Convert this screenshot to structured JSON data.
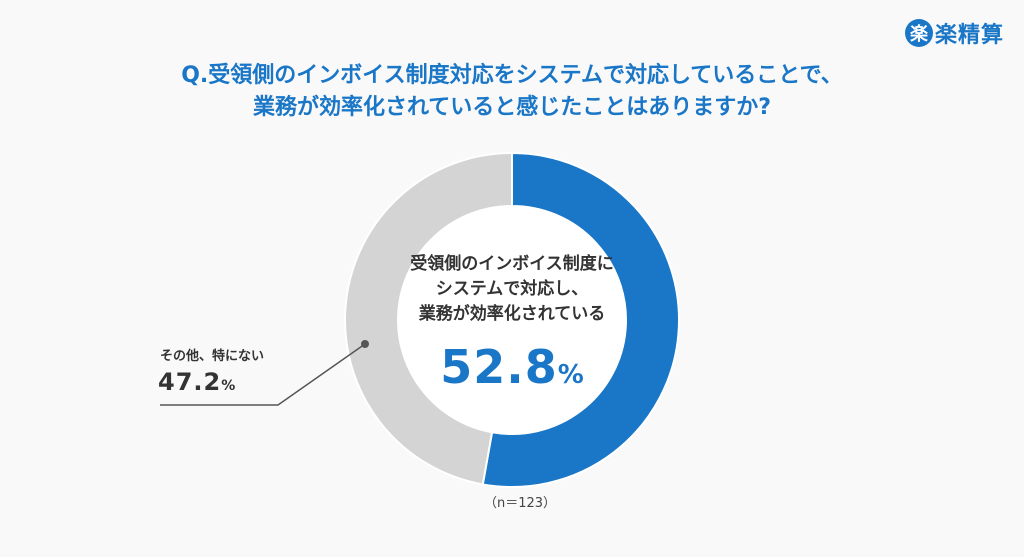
{
  "logo": {
    "badge": "楽",
    "text": "楽精算"
  },
  "title": {
    "line1": "Q.受領側のインボイス制度対応をシステムで対応していることで、",
    "line2": "業務が効率化されていると感じたことはありますか?"
  },
  "center": {
    "label_line1": "受領側のインボイス制度に",
    "label_line2": "システムで対応し、",
    "label_line3": "業務が効率化されている",
    "value": "52.8",
    "unit": "%"
  },
  "side": {
    "label": "その他、特にない",
    "value": "47.2",
    "unit": "%"
  },
  "sample": "（n＝123）",
  "colors": {
    "primary": "#1a76c7",
    "secondary": "#d4d4d4",
    "text": "#333333"
  },
  "chart_data": {
    "type": "pie",
    "title": "Q.受領側のインボイス制度対応をシステムで対応していることで、業務が効率化されていると感じたことはありますか?",
    "categories": [
      "受領側のインボイス制度にシステムで対応し、業務が効率化されている",
      "その他、特にない"
    ],
    "values": [
      52.8,
      47.2
    ],
    "unit": "%",
    "colors": [
      "#1a76c7",
      "#d4d4d4"
    ],
    "donut": true,
    "n": 123
  }
}
